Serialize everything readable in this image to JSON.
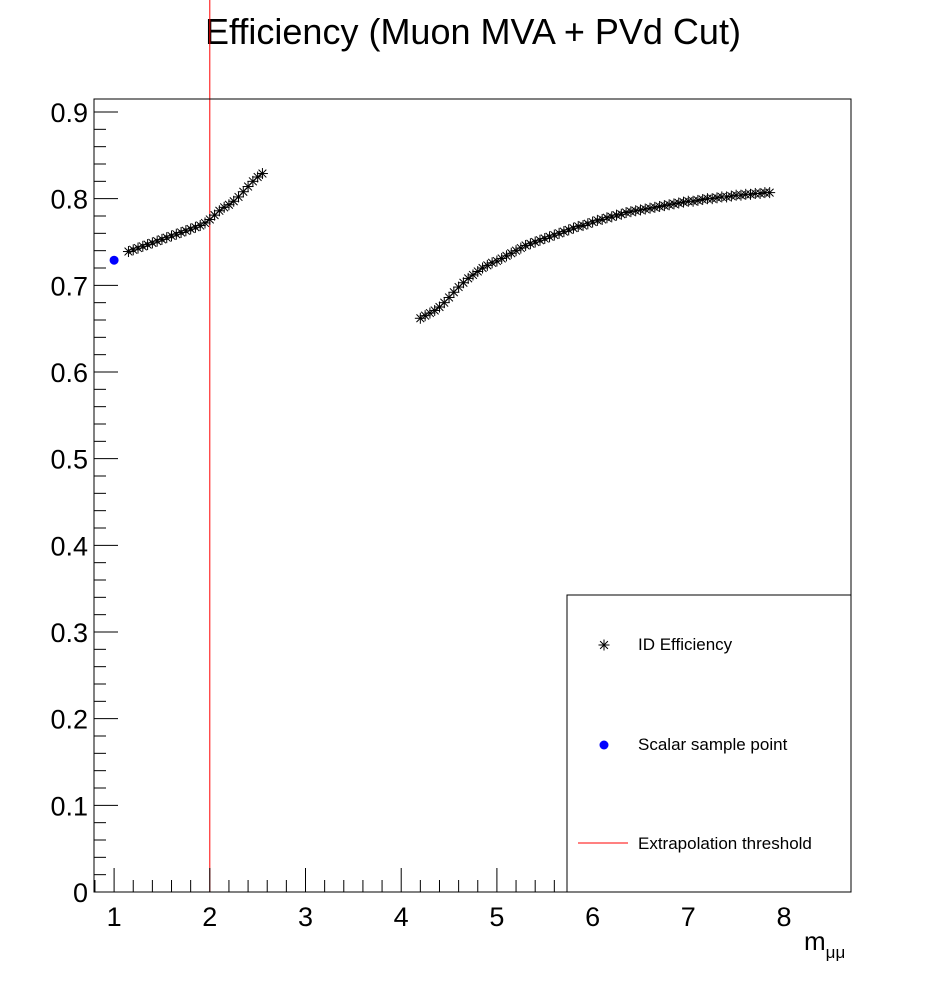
{
  "chart_data": {
    "type": "scatter",
    "title": "Efficiency (Muon MVA + PVd Cut)",
    "xlabel_main": "m",
    "xlabel_sub": "μμ",
    "xlim": [
      0.79,
      8.7
    ],
    "ylim": [
      0,
      0.915
    ],
    "x_ticks": [
      1,
      2,
      3,
      4,
      5,
      6,
      7,
      8
    ],
    "x_tick_labels": [
      "1",
      "2",
      "3",
      "4",
      "5",
      "6",
      "7",
      "8"
    ],
    "y_ticks": [
      0,
      0.1,
      0.2,
      0.3,
      0.4,
      0.5,
      0.6,
      0.7,
      0.8,
      0.9
    ],
    "y_tick_labels": [
      "0",
      "0.1",
      "0.2",
      "0.3",
      "0.4",
      "0.5",
      "0.6",
      "0.7",
      "0.8",
      "0.9"
    ],
    "threshold_x": 2.0,
    "series": [
      {
        "name": "ID Efficiency",
        "marker": "star",
        "color": "#000000",
        "x": [
          1.15,
          1.2,
          1.25,
          1.3,
          1.35,
          1.4,
          1.45,
          1.5,
          1.55,
          1.6,
          1.65,
          1.7,
          1.75,
          1.8,
          1.85,
          1.9,
          1.95,
          2.0,
          2.05,
          2.1,
          2.15,
          2.2,
          2.25,
          2.3,
          2.35,
          2.4,
          2.45,
          2.5,
          2.55,
          4.2,
          4.25,
          4.3,
          4.35,
          4.4,
          4.45,
          4.5,
          4.55,
          4.6,
          4.65,
          4.7,
          4.75,
          4.8,
          4.85,
          4.9,
          4.95,
          5.0,
          5.05,
          5.1,
          5.15,
          5.2,
          5.25,
          5.3,
          5.35,
          5.4,
          5.45,
          5.5,
          5.55,
          5.6,
          5.65,
          5.7,
          5.75,
          5.8,
          5.85,
          5.9,
          5.95,
          6.0,
          6.05,
          6.1,
          6.15,
          6.2,
          6.25,
          6.3,
          6.35,
          6.4,
          6.45,
          6.5,
          6.55,
          6.6,
          6.65,
          6.7,
          6.75,
          6.8,
          6.85,
          6.9,
          6.95,
          7.0,
          7.05,
          7.1,
          7.15,
          7.2,
          7.25,
          7.3,
          7.35,
          7.4,
          7.45,
          7.5,
          7.55,
          7.6,
          7.65,
          7.7,
          7.75,
          7.8,
          7.85
        ],
        "y": [
          0.739,
          0.741,
          0.743,
          0.745,
          0.747,
          0.749,
          0.751,
          0.753,
          0.755,
          0.757,
          0.759,
          0.761,
          0.763,
          0.765,
          0.767,
          0.769,
          0.772,
          0.776,
          0.781,
          0.786,
          0.79,
          0.793,
          0.797,
          0.802,
          0.808,
          0.814,
          0.82,
          0.825,
          0.829,
          0.662,
          0.665,
          0.668,
          0.671,
          0.675,
          0.68,
          0.686,
          0.692,
          0.698,
          0.703,
          0.708,
          0.712,
          0.716,
          0.72,
          0.723,
          0.726,
          0.728,
          0.731,
          0.734,
          0.737,
          0.74,
          0.743,
          0.746,
          0.748,
          0.75,
          0.752,
          0.754,
          0.756,
          0.758,
          0.76,
          0.762,
          0.764,
          0.766,
          0.768,
          0.769,
          0.771,
          0.773,
          0.775,
          0.776,
          0.778,
          0.779,
          0.781,
          0.782,
          0.784,
          0.785,
          0.786,
          0.787,
          0.788,
          0.789,
          0.79,
          0.791,
          0.792,
          0.793,
          0.794,
          0.795,
          0.796,
          0.797,
          0.797,
          0.798,
          0.799,
          0.8,
          0.8,
          0.801,
          0.802,
          0.802,
          0.803,
          0.804,
          0.804,
          0.805,
          0.805,
          0.806,
          0.806,
          0.807,
          0.807
        ]
      },
      {
        "name": "Scalar sample point",
        "marker": "circle",
        "color": "#0000ff",
        "x": [
          1.0
        ],
        "y": [
          0.729
        ]
      }
    ],
    "threshold_line": {
      "name": "Extrapolation threshold",
      "color": "#ff0000"
    },
    "legend": {
      "position": "bottom-right",
      "entries": [
        "ID Efficiency",
        "Scalar sample point",
        "Extrapolation threshold"
      ]
    }
  }
}
